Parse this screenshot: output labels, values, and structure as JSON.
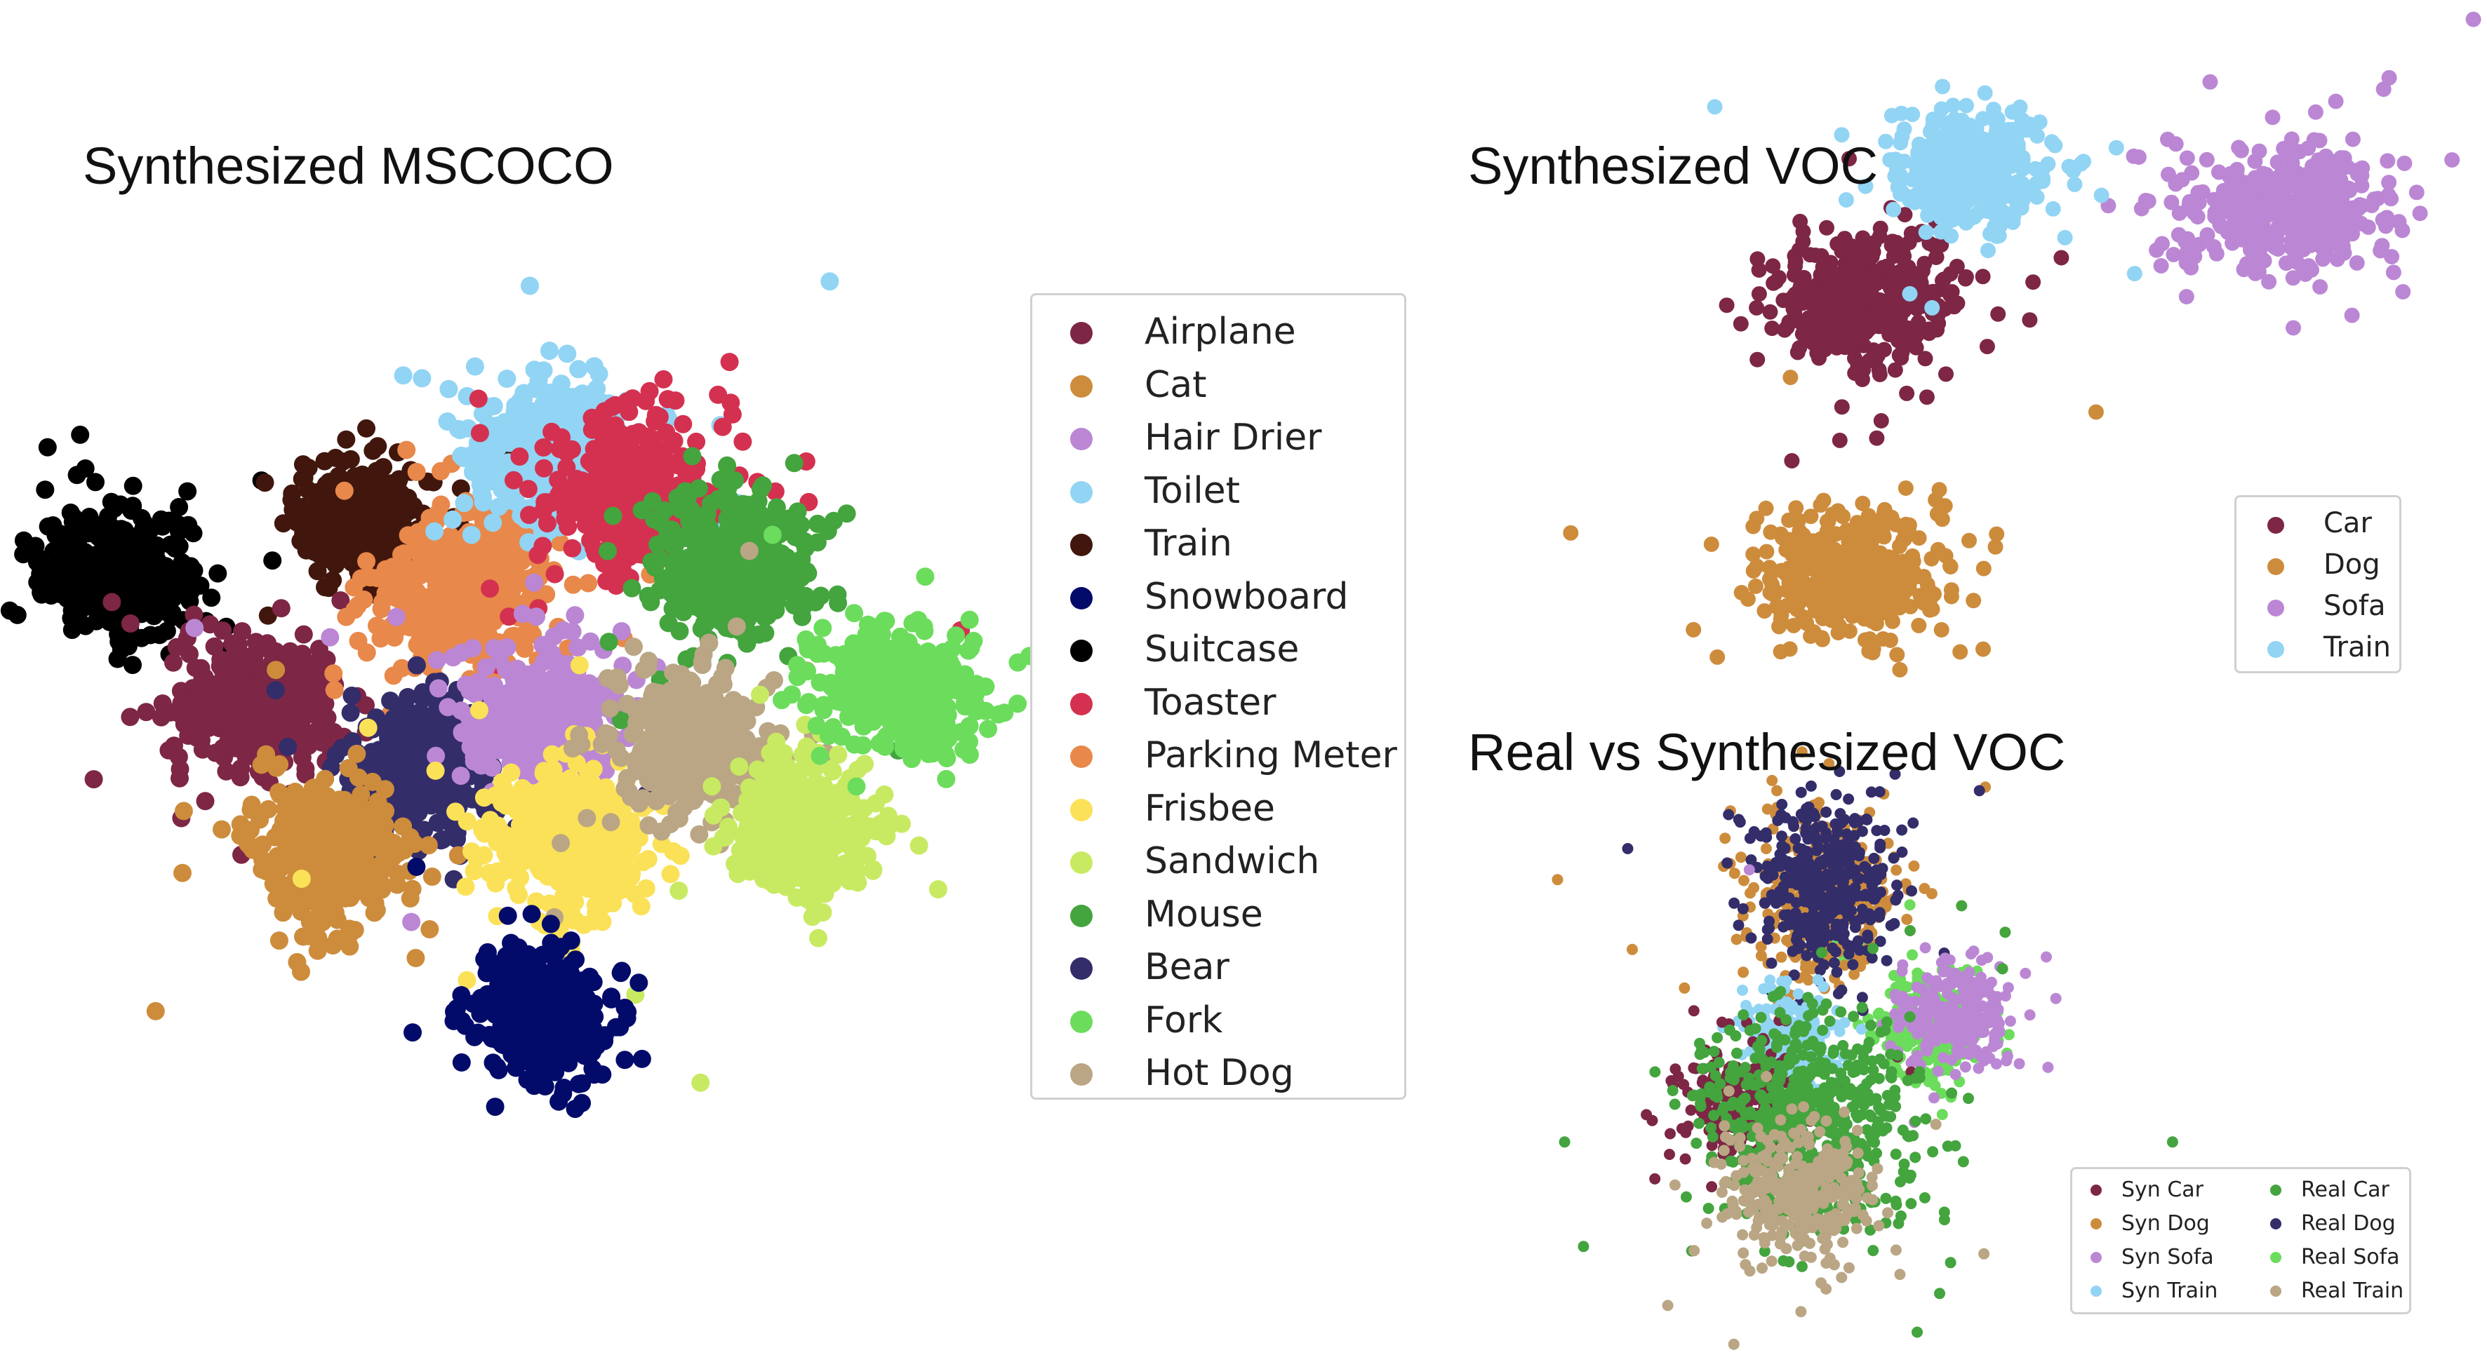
{
  "colors": {
    "airplane": "#7d2645",
    "cat": "#cd8c3c",
    "hair_drier": "#bb87d4",
    "toilet": "#92d4f4",
    "train": "#41170d",
    "snowboard": "#020b6a",
    "suitcase": "#000000",
    "toaster": "#d43150",
    "parking_meter": "#e8884a",
    "frisbee": "#fbe158",
    "sandwich": "#c8ea62",
    "mouse": "#44a43e",
    "bear": "#332d6a",
    "fork": "#6cdc5c",
    "hot_dog": "#baa684"
  },
  "chart_data": [
    {
      "type": "scatter",
      "title": "Synthesized MSCOCO",
      "legend_placement": "right",
      "grid": false,
      "axes_visible": false,
      "series": [
        {
          "name": "Airplane",
          "color": "#7d2645",
          "center": [
            -5.6,
            -1.1
          ],
          "spread": [
            1.1,
            0.75
          ],
          "count": 420
        },
        {
          "name": "Cat",
          "color": "#cd8c3c",
          "center": [
            -4.2,
            -3.7
          ],
          "spread": [
            1.0,
            0.8
          ],
          "count": 380
        },
        {
          "name": "Hair Drier",
          "color": "#bb87d4",
          "center": [
            0.2,
            -1.3
          ],
          "spread": [
            1.1,
            0.8
          ],
          "count": 380
        },
        {
          "name": "Toilet",
          "color": "#92d4f4",
          "center": [
            0.4,
            3.5
          ],
          "spread": [
            1.2,
            0.8
          ],
          "count": 420
        },
        {
          "name": "Train",
          "color": "#41170d",
          "center": [
            -3.4,
            2.2
          ],
          "spread": [
            0.95,
            0.7
          ],
          "count": 360
        },
        {
          "name": "Snowboard",
          "color": "#020b6a",
          "center": [
            0.2,
            -6.6
          ],
          "spread": [
            0.9,
            0.75
          ],
          "count": 360
        },
        {
          "name": "Suitcase",
          "color": "#000000",
          "center": [
            -8.5,
            1.3
          ],
          "spread": [
            1.0,
            0.72
          ],
          "count": 380
        },
        {
          "name": "Toaster",
          "color": "#d43150",
          "center": [
            2.1,
            2.7
          ],
          "spread": [
            1.1,
            0.95
          ],
          "count": 420
        },
        {
          "name": "Parking Meter",
          "color": "#e8884a",
          "center": [
            -1.4,
            1.0
          ],
          "spread": [
            1.2,
            0.85
          ],
          "count": 420
        },
        {
          "name": "Frisbee",
          "color": "#fbe158",
          "center": [
            0.8,
            -3.4
          ],
          "spread": [
            1.1,
            0.85
          ],
          "count": 420
        },
        {
          "name": "Sandwich",
          "color": "#c8ea62",
          "center": [
            5.4,
            -3.2
          ],
          "spread": [
            0.95,
            0.8
          ],
          "count": 340
        },
        {
          "name": "Mouse",
          "color": "#44a43e",
          "center": [
            4.0,
            1.4
          ],
          "spread": [
            1.1,
            0.85
          ],
          "count": 400
        },
        {
          "name": "Bear",
          "color": "#332d6a",
          "center": [
            -2.3,
            -2.1
          ],
          "spread": [
            1.0,
            0.8
          ],
          "count": 380
        },
        {
          "name": "Fork",
          "color": "#6cdc5c",
          "center": [
            7.4,
            -0.8
          ],
          "spread": [
            1.1,
            0.7
          ],
          "count": 360
        },
        {
          "name": "Hot Dog",
          "color": "#baa684",
          "center": [
            3.2,
            -1.8
          ],
          "spread": [
            1.1,
            0.85
          ],
          "count": 400
        }
      ],
      "xlim": [
        -10,
        10
      ],
      "ylim": [
        -8,
        6
      ]
    },
    {
      "type": "scatter",
      "title": "Synthesized VOC",
      "legend_placement": "right",
      "grid": false,
      "axes_visible": false,
      "series": [
        {
          "name": "Car",
          "color": "#7d2645",
          "center": [
            -2.8,
            1.1
          ],
          "spread": [
            0.75,
            0.65
          ],
          "count": 420
        },
        {
          "name": "Dog",
          "color": "#cd8c3c",
          "center": [
            -3.0,
            -3.0
          ],
          "spread": [
            0.75,
            0.65
          ],
          "count": 420
        },
        {
          "name": "Sofa",
          "color": "#bb87d4",
          "center": [
            2.5,
            2.5
          ],
          "spread": [
            0.95,
            0.6
          ],
          "count": 420
        },
        {
          "name": "Train",
          "color": "#92d4f4",
          "center": [
            -1.5,
            3.1
          ],
          "spread": [
            0.65,
            0.6
          ],
          "count": 420
        }
      ],
      "xlim": [
        -6,
        4
      ],
      "ylim": [
        -4.5,
        4.5
      ]
    },
    {
      "type": "scatter",
      "title": "Real vs Synthesized VOC",
      "legend_placement": "bottom-right",
      "grid": false,
      "axes_visible": false,
      "series": [
        {
          "name": "Syn Car",
          "color": "#7d2645",
          "center": [
            -1.7,
            -0.6
          ],
          "spread": [
            0.7,
            0.55
          ],
          "count": 260
        },
        {
          "name": "Syn Dog",
          "color": "#cd8c3c",
          "center": [
            -0.5,
            2.3
          ],
          "spread": [
            0.75,
            0.75
          ],
          "count": 320
        },
        {
          "name": "Syn Sofa",
          "color": "#bb87d4",
          "center": [
            1.6,
            0.6
          ],
          "spread": [
            0.65,
            0.5
          ],
          "count": 260
        },
        {
          "name": "Syn Train",
          "color": "#92d4f4",
          "center": [
            -1.0,
            0.3
          ],
          "spread": [
            0.45,
            0.45
          ],
          "count": 220
        },
        {
          "name": "Real Car",
          "color": "#44a43e",
          "center": [
            -0.8,
            -0.8
          ],
          "spread": [
            1.15,
            1.0
          ],
          "count": 620
        },
        {
          "name": "Real Dog",
          "color": "#332d6a",
          "center": [
            -0.5,
            2.4
          ],
          "spread": [
            0.7,
            0.75
          ],
          "count": 380
        },
        {
          "name": "Real Sofa",
          "color": "#6cdc5c",
          "center": [
            1.3,
            0.5
          ],
          "spread": [
            0.6,
            0.5
          ],
          "count": 240
        },
        {
          "name": "Real Train",
          "color": "#baa684",
          "center": [
            -0.9,
            -1.7
          ],
          "spread": [
            0.85,
            0.6
          ],
          "count": 320
        }
      ],
      "xlim": [
        -4,
        4
      ],
      "ylim": [
        -3.5,
        3.5
      ]
    }
  ]
}
